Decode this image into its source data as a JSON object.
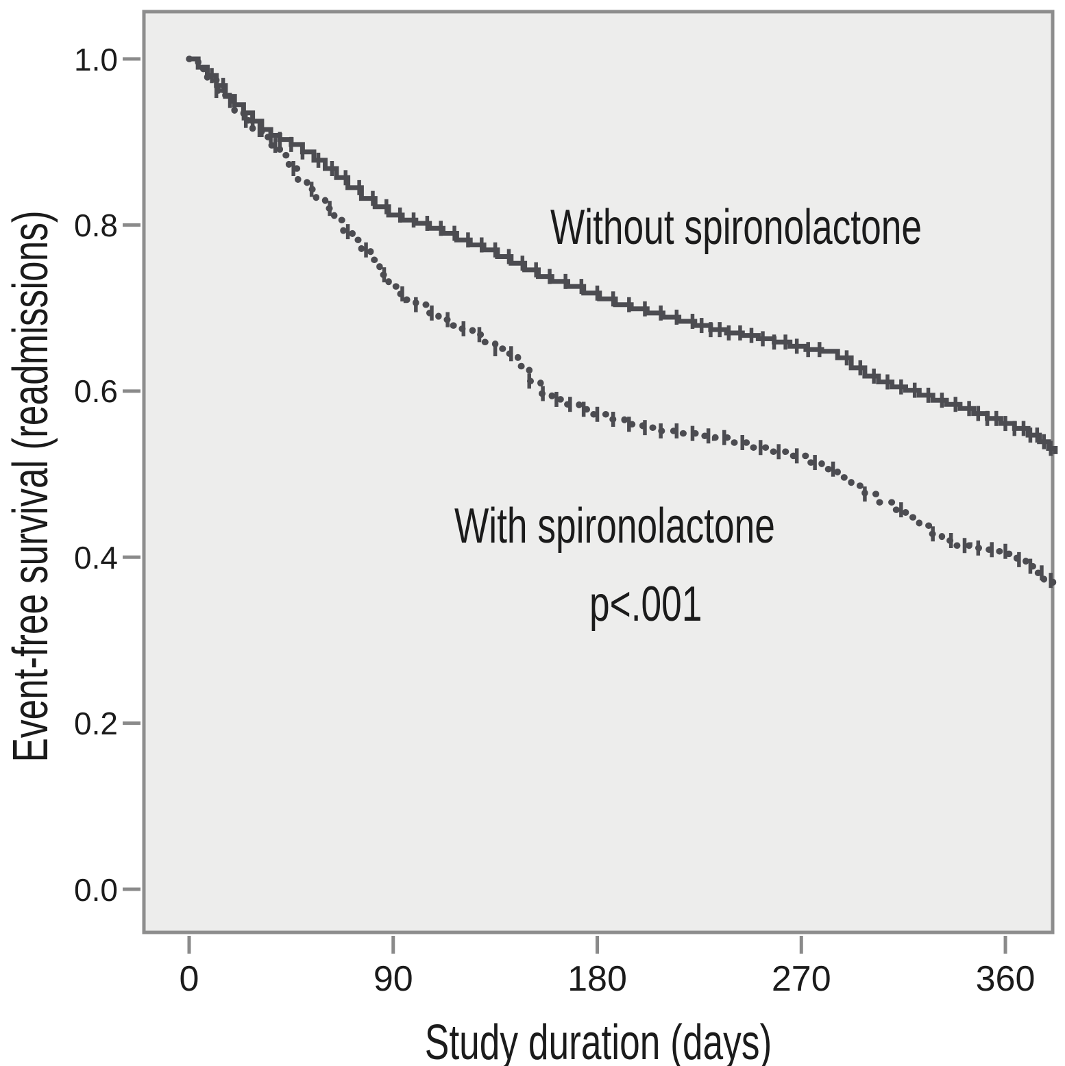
{
  "figure": {
    "background": "#ffffff",
    "plot_background": "#ededec",
    "frame_color": "#8d8d8d",
    "tick_color": "#8a8a8a",
    "text_color": "#1b1b1b",
    "curve_color": "#4c4c51"
  },
  "chart_data": {
    "type": "line",
    "subtype": "kaplan-meier-step",
    "title": "",
    "xlabel": "Study duration (days)",
    "ylabel": "Event-free survival (readmissions)",
    "x_ticks": [
      0,
      90,
      180,
      270,
      360
    ],
    "x_tick_labels": [
      "0",
      "90",
      "180",
      "270",
      "360"
    ],
    "y_ticks": [
      1.0,
      0.8,
      0.6,
      0.4,
      0.2,
      0.0
    ],
    "y_tick_labels": [
      "1.0",
      "0.8",
      "0.6",
      "0.4",
      "0.2",
      "0.0"
    ],
    "xlim": [
      -20.55,
      381.45
    ],
    "ylim": [
      -0.0536,
      1.0586
    ],
    "grid": false,
    "legend_position": "inline-annotations",
    "p_value": "p<.001",
    "series": [
      {
        "name": "Without spironolactone",
        "line_style": "solid",
        "points": [
          [
            0,
            1.0
          ],
          [
            4,
            0.99
          ],
          [
            8,
            0.98
          ],
          [
            12,
            0.968
          ],
          [
            16,
            0.955
          ],
          [
            20,
            0.945
          ],
          [
            24,
            0.935
          ],
          [
            28,
            0.925
          ],
          [
            32,
            0.915
          ],
          [
            36,
            0.908
          ],
          [
            40,
            0.903
          ],
          [
            45,
            0.897
          ],
          [
            50,
            0.888
          ],
          [
            55,
            0.878
          ],
          [
            60,
            0.868
          ],
          [
            65,
            0.857
          ],
          [
            70,
            0.845
          ],
          [
            76,
            0.832
          ],
          [
            82,
            0.822
          ],
          [
            88,
            0.812
          ],
          [
            94,
            0.806
          ],
          [
            100,
            0.802
          ],
          [
            106,
            0.796
          ],
          [
            112,
            0.79
          ],
          [
            118,
            0.782
          ],
          [
            124,
            0.776
          ],
          [
            130,
            0.77
          ],
          [
            136,
            0.762
          ],
          [
            142,
            0.754
          ],
          [
            148,
            0.746
          ],
          [
            154,
            0.738
          ],
          [
            160,
            0.732
          ],
          [
            167,
            0.726
          ],
          [
            174,
            0.718
          ],
          [
            181,
            0.711
          ],
          [
            188,
            0.704
          ],
          [
            195,
            0.699
          ],
          [
            202,
            0.694
          ],
          [
            209,
            0.689
          ],
          [
            216,
            0.684
          ],
          [
            223,
            0.679
          ],
          [
            230,
            0.674
          ],
          [
            237,
            0.67
          ],
          [
            244,
            0.667
          ],
          [
            251,
            0.663
          ],
          [
            258,
            0.659
          ],
          [
            265,
            0.654
          ],
          [
            272,
            0.65
          ],
          [
            279,
            0.648
          ],
          [
            286,
            0.64
          ],
          [
            292,
            0.628
          ],
          [
            298,
            0.618
          ],
          [
            304,
            0.611
          ],
          [
            310,
            0.605
          ],
          [
            316,
            0.601
          ],
          [
            322,
            0.595
          ],
          [
            328,
            0.589
          ],
          [
            334,
            0.584
          ],
          [
            340,
            0.579
          ],
          [
            346,
            0.573
          ],
          [
            352,
            0.567
          ],
          [
            358,
            0.561
          ],
          [
            364,
            0.555
          ],
          [
            370,
            0.547
          ],
          [
            375,
            0.539
          ],
          [
            379,
            0.531
          ],
          [
            382,
            0.524
          ]
        ],
        "censor_days": [
          10,
          15,
          20,
          24,
          28,
          32,
          36,
          40,
          45,
          50,
          57,
          63,
          69,
          75,
          81,
          87,
          93,
          99,
          105,
          111,
          117,
          123,
          129,
          135,
          141,
          147,
          153,
          159,
          166,
          173,
          180,
          187,
          194,
          201,
          208,
          215,
          222,
          226,
          230,
          234,
          238,
          243,
          248,
          253,
          258,
          263,
          268,
          273,
          278,
          290,
          296,
          302,
          308,
          314,
          320,
          326,
          332,
          338,
          344,
          348,
          352,
          356,
          360,
          364,
          368,
          371,
          374,
          377,
          380
        ]
      },
      {
        "name": "With spironolactone",
        "line_style": "dotted",
        "points": [
          [
            0,
            1.0
          ],
          [
            4,
            0.988
          ],
          [
            8,
            0.975
          ],
          [
            12,
            0.962
          ],
          [
            16,
            0.95
          ],
          [
            20,
            0.938
          ],
          [
            24,
            0.926
          ],
          [
            28,
            0.915
          ],
          [
            32,
            0.906
          ],
          [
            36,
            0.896
          ],
          [
            40,
            0.884
          ],
          [
            44,
            0.868
          ],
          [
            48,
            0.854
          ],
          [
            52,
            0.843
          ],
          [
            56,
            0.832
          ],
          [
            60,
            0.82
          ],
          [
            64,
            0.806
          ],
          [
            68,
            0.792
          ],
          [
            72,
            0.782
          ],
          [
            76,
            0.77
          ],
          [
            80,
            0.758
          ],
          [
            84,
            0.74
          ],
          [
            88,
            0.726
          ],
          [
            92,
            0.717
          ],
          [
            96,
            0.71
          ],
          [
            100,
            0.704
          ],
          [
            105,
            0.694
          ],
          [
            110,
            0.686
          ],
          [
            115,
            0.679
          ],
          [
            120,
            0.675
          ],
          [
            125,
            0.668
          ],
          [
            130,
            0.659
          ],
          [
            135,
            0.651
          ],
          [
            140,
            0.645
          ],
          [
            145,
            0.63
          ],
          [
            150,
            0.612
          ],
          [
            155,
            0.597
          ],
          [
            160,
            0.59
          ],
          [
            166,
            0.584
          ],
          [
            172,
            0.578
          ],
          [
            178,
            0.572
          ],
          [
            185,
            0.566
          ],
          [
            192,
            0.56
          ],
          [
            200,
            0.556
          ],
          [
            208,
            0.552
          ],
          [
            216,
            0.549
          ],
          [
            224,
            0.546
          ],
          [
            232,
            0.544
          ],
          [
            240,
            0.538
          ],
          [
            248,
            0.532
          ],
          [
            256,
            0.527
          ],
          [
            264,
            0.522
          ],
          [
            272,
            0.514
          ],
          [
            279,
            0.506
          ],
          [
            286,
            0.496
          ],
          [
            292,
            0.486
          ],
          [
            298,
            0.476
          ],
          [
            304,
            0.466
          ],
          [
            310,
            0.457
          ],
          [
            316,
            0.448
          ],
          [
            322,
            0.438
          ],
          [
            327,
            0.428
          ],
          [
            332,
            0.42
          ],
          [
            338,
            0.414
          ],
          [
            344,
            0.411
          ],
          [
            350,
            0.409
          ],
          [
            356,
            0.407
          ],
          [
            361,
            0.404
          ],
          [
            365,
            0.397
          ],
          [
            369,
            0.389
          ],
          [
            373,
            0.381
          ],
          [
            377,
            0.372
          ],
          [
            381,
            0.367
          ]
        ],
        "censor_days": [
          12,
          18,
          25,
          31,
          38,
          46,
          54,
          62,
          70,
          78,
          86,
          94,
          100,
          107,
          114,
          121,
          128,
          135,
          142,
          150,
          156,
          162,
          168,
          174,
          180,
          187,
          194,
          201,
          208,
          215,
          222,
          229,
          236,
          244,
          252,
          260,
          268,
          276,
          284,
          298,
          314,
          328,
          336,
          342,
          348,
          354,
          360,
          366,
          371,
          376,
          380
        ]
      }
    ]
  }
}
